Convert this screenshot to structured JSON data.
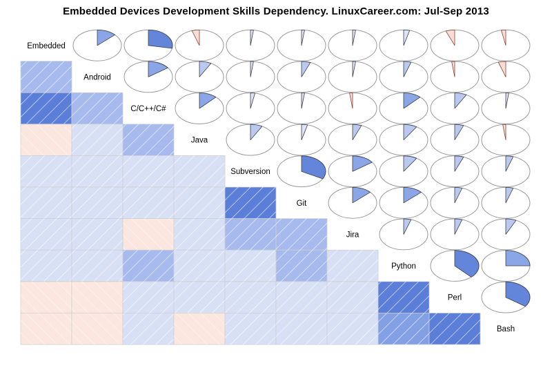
{
  "title": "Embedded Devices Development Skills Dependency. LinuxCareer.com: Jul-Sep 2013",
  "chart_data": {
    "type": "heatmap",
    "subtype": "corrgram",
    "title": "Embedded Devices Development Skills Dependency. LinuxCareer.com: Jul-Sep 2013",
    "upper_triangle": "pie-glyphs (blue clockwise = positive, pink counterclockwise = negative, fill fraction = |r|)",
    "lower_triangle": "shaded hatched cells (blue = positive, pink = negative)",
    "legend_position": "none",
    "grid": "lower-triangle only",
    "variables": [
      "Embedded",
      "Android",
      "C/C++/C#",
      "Java",
      "Subversion",
      "Git",
      "Jira",
      "Python",
      "Perl",
      "Bash"
    ],
    "correlations": [
      [
        1.0,
        0.13,
        0.28,
        -0.05,
        0.02,
        0.02,
        0.02,
        0.04,
        -0.06,
        -0.03
      ],
      [
        0.13,
        1.0,
        0.15,
        0.08,
        0.02,
        0.06,
        0.02,
        0.05,
        -0.02,
        -0.05
      ],
      [
        0.28,
        0.15,
        1.0,
        0.12,
        0.03,
        0.02,
        -0.02,
        0.12,
        0.08,
        0.02
      ],
      [
        -0.05,
        0.08,
        0.12,
        1.0,
        0.08,
        0.04,
        0.06,
        0.09,
        0.06,
        -0.02
      ],
      [
        0.02,
        0.02,
        0.03,
        0.08,
        1.0,
        0.33,
        0.15,
        0.09,
        0.06,
        0.05
      ],
      [
        0.02,
        0.06,
        0.02,
        0.04,
        0.33,
        1.0,
        0.13,
        0.13,
        0.05,
        0.05
      ],
      [
        0.02,
        0.02,
        -0.02,
        0.06,
        0.15,
        0.13,
        1.0,
        0.05,
        0.05,
        0.07
      ],
      [
        0.04,
        0.05,
        0.12,
        0.09,
        0.09,
        0.13,
        0.05,
        1.0,
        0.38,
        0.25
      ],
      [
        -0.06,
        -0.02,
        0.08,
        0.06,
        0.06,
        0.05,
        0.05,
        0.38,
        1.0,
        0.35
      ],
      [
        -0.03,
        -0.05,
        0.02,
        -0.02,
        0.05,
        0.05,
        0.07,
        0.25,
        0.35,
        1.0
      ]
    ],
    "palette": {
      "cell_pos_dark": "#5b7ed8",
      "cell_pos_med": "#84a0e4",
      "cell_pos_medlight": "#a6baee",
      "cell_pos_light": "#d8e0f6",
      "cell_neg": "#fbe7df",
      "pie_pos_dark": "#6486da",
      "pie_pos_med": "#8ba6e6",
      "pie_pos_light": "#bac9f0",
      "pie_pos_faint": "#dde3f8",
      "pie_neg": "#f6ded6",
      "pie_outline": "#9a9a9a",
      "wedge_stroke_pos": "#3a3f4a",
      "wedge_stroke_neg": "#8a4134",
      "cell_border": "#cfcfcf",
      "hatch": "#ffffff"
    }
  }
}
